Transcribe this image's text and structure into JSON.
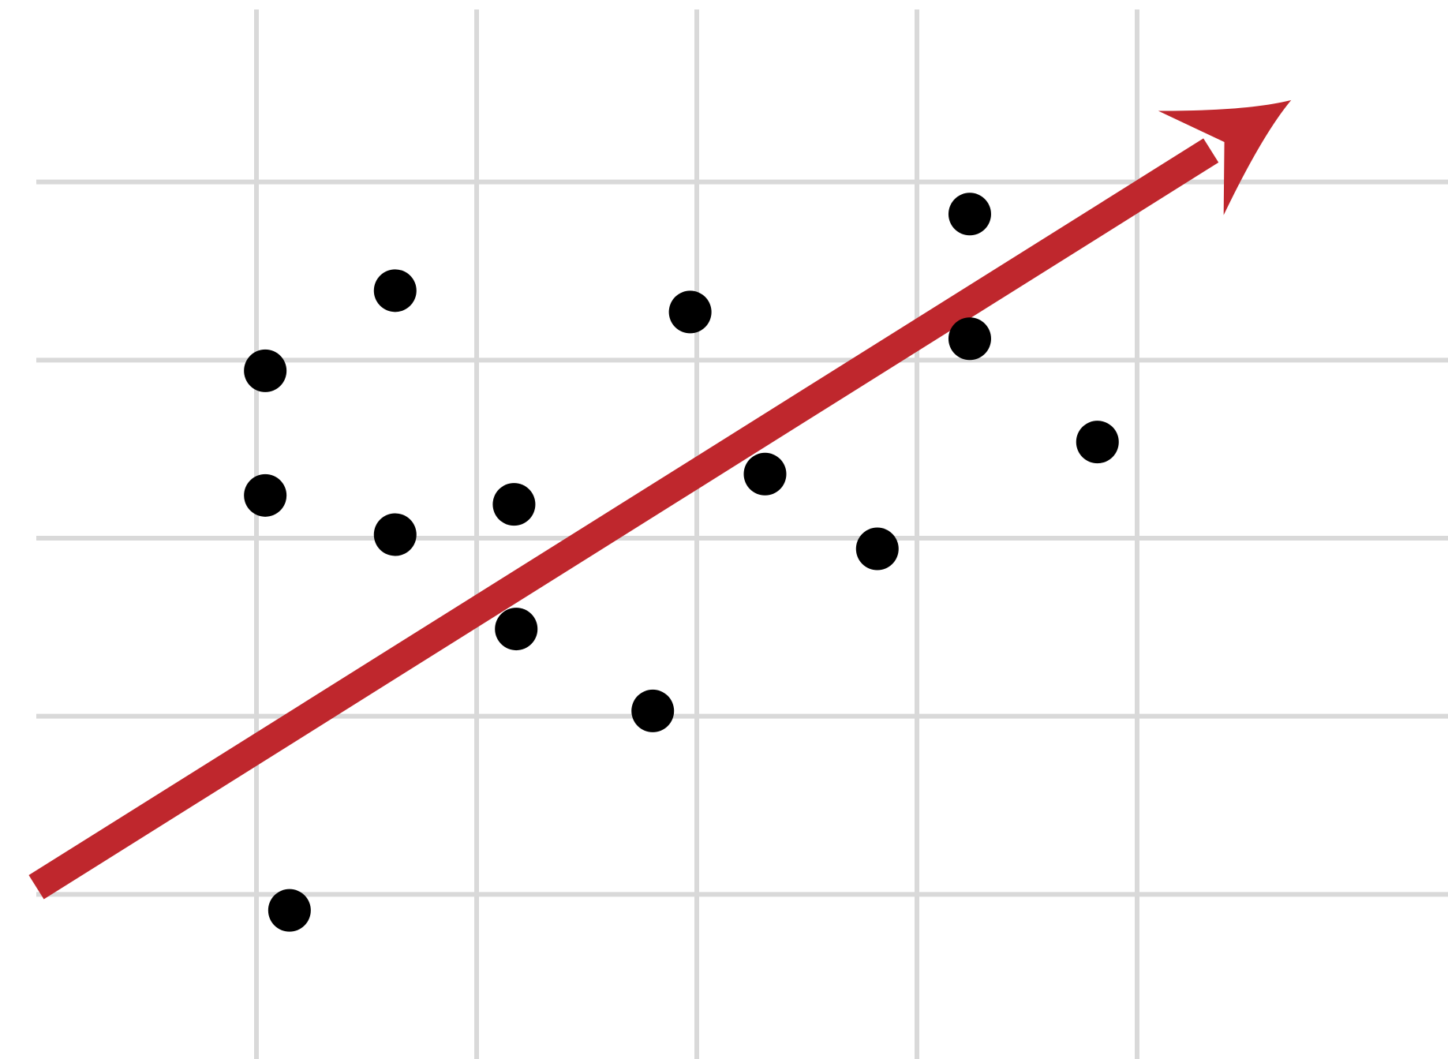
{
  "chart_data": {
    "type": "scatter",
    "title": "",
    "xlabel": "",
    "ylabel": "",
    "xlim": [
      0,
      6
    ],
    "ylim": [
      0,
      6
    ],
    "grid": true,
    "x_gridlines": [
      1,
      2,
      3,
      4,
      5
    ],
    "y_gridlines": [
      1,
      2,
      3,
      4,
      5
    ],
    "points": [
      {
        "x": 1.04,
        "y": 3.94
      },
      {
        "x": 1.04,
        "y": 3.24
      },
      {
        "x": 1.15,
        "y": 0.91
      },
      {
        "x": 1.63,
        "y": 4.39
      },
      {
        "x": 1.63,
        "y": 3.02
      },
      {
        "x": 2.17,
        "y": 3.19
      },
      {
        "x": 2.18,
        "y": 2.49
      },
      {
        "x": 2.8,
        "y": 2.03
      },
      {
        "x": 2.97,
        "y": 4.27
      },
      {
        "x": 3.31,
        "y": 3.36
      },
      {
        "x": 3.82,
        "y": 2.94
      },
      {
        "x": 4.24,
        "y": 4.82
      },
      {
        "x": 4.24,
        "y": 4.12
      },
      {
        "x": 4.82,
        "y": 3.54
      }
    ],
    "trend_arrow": {
      "color": "#bf272d",
      "start": {
        "x": 0.0,
        "y": 1.04
      },
      "end": {
        "x": 5.7,
        "y": 5.46
      }
    },
    "colors": {
      "points": "#000000",
      "grid": "#d9d9d9",
      "arrow": "#bf272d",
      "background": "#ffffff"
    }
  }
}
